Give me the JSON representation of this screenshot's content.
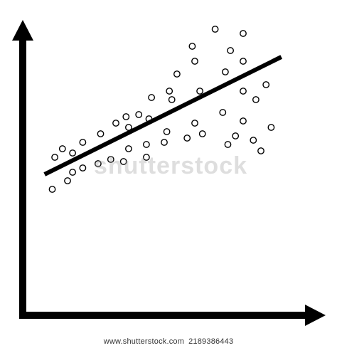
{
  "chart_data": {
    "type": "scatter",
    "title": "",
    "xlabel": "",
    "ylabel": "",
    "xlim": [
      0,
      100
    ],
    "ylim": [
      0,
      100
    ],
    "grid": false,
    "legend": "none",
    "points": [
      {
        "x": 6,
        "y": 24
      },
      {
        "x": 7,
        "y": 39
      },
      {
        "x": 10,
        "y": 43
      },
      {
        "x": 12,
        "y": 28
      },
      {
        "x": 14,
        "y": 32
      },
      {
        "x": 14,
        "y": 41
      },
      {
        "x": 18,
        "y": 34
      },
      {
        "x": 18,
        "y": 46
      },
      {
        "x": 24,
        "y": 36
      },
      {
        "x": 25,
        "y": 50
      },
      {
        "x": 29,
        "y": 38
      },
      {
        "x": 31,
        "y": 55
      },
      {
        "x": 34,
        "y": 37
      },
      {
        "x": 35,
        "y": 58
      },
      {
        "x": 36,
        "y": 53
      },
      {
        "x": 36,
        "y": 43
      },
      {
        "x": 40,
        "y": 59
      },
      {
        "x": 43,
        "y": 39
      },
      {
        "x": 43,
        "y": 45
      },
      {
        "x": 44,
        "y": 57
      },
      {
        "x": 45,
        "y": 67
      },
      {
        "x": 50,
        "y": 46
      },
      {
        "x": 51,
        "y": 51
      },
      {
        "x": 52,
        "y": 70
      },
      {
        "x": 53,
        "y": 66
      },
      {
        "x": 55,
        "y": 78
      },
      {
        "x": 59,
        "y": 48
      },
      {
        "x": 61,
        "y": 91
      },
      {
        "x": 62,
        "y": 55
      },
      {
        "x": 62,
        "y": 84
      },
      {
        "x": 64,
        "y": 70
      },
      {
        "x": 65,
        "y": 50
      },
      {
        "x": 70,
        "y": 99
      },
      {
        "x": 73,
        "y": 60
      },
      {
        "x": 74,
        "y": 79
      },
      {
        "x": 75,
        "y": 45
      },
      {
        "x": 76,
        "y": 89
      },
      {
        "x": 78,
        "y": 49
      },
      {
        "x": 81,
        "y": 56
      },
      {
        "x": 81,
        "y": 70
      },
      {
        "x": 81,
        "y": 84
      },
      {
        "x": 81,
        "y": 97
      },
      {
        "x": 85,
        "y": 47
      },
      {
        "x": 86,
        "y": 66
      },
      {
        "x": 88,
        "y": 42
      },
      {
        "x": 90,
        "y": 73
      },
      {
        "x": 92,
        "y": 53
      }
    ],
    "trendline": {
      "x": [
        3,
        96
      ],
      "y": [
        31,
        86
      ]
    }
  },
  "watermark": "shutterstock",
  "footer": {
    "site": "www.shutterstock.com",
    "image_id": "2189386443"
  }
}
